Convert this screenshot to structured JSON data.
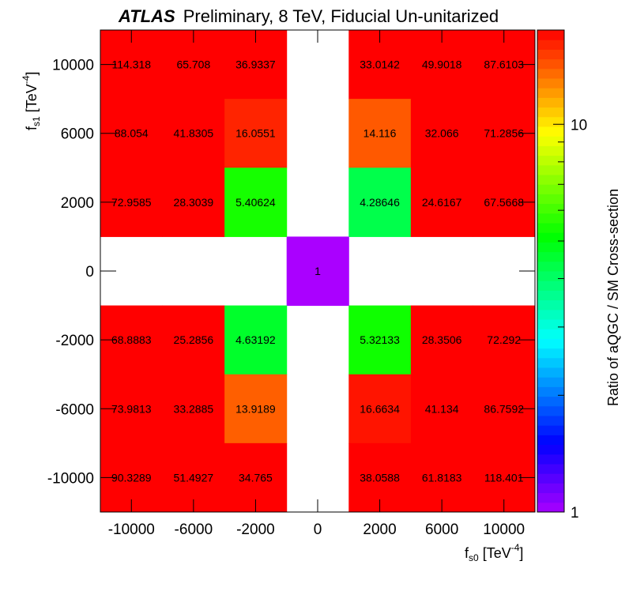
{
  "header": {
    "experiment": "ATLAS",
    "subtitle": "Preliminary, 8 TeV, Fiducial Un-unitarized"
  },
  "axes": {
    "x_main": "f",
    "x_sub": "s0",
    "x_unit_pre": " [TeV",
    "x_unit_sup": "-4",
    "x_unit_post": "]",
    "y_main": "f",
    "y_sub": "s1",
    "y_unit_pre": " [TeV",
    "y_unit_sup": "-4",
    "y_unit_post": "]",
    "z_label": "Ratio of aQGC / SM Cross-section"
  },
  "chart_data": {
    "type": "heatmap",
    "title": "ATLAS Preliminary, 8 TeV, Fiducial Un-unitarized",
    "xlabel": "f_s0 [TeV^-4]",
    "ylabel": "f_s1 [TeV^-4]",
    "zlabel": "Ratio of aQGC / SM Cross-section",
    "x": [
      -12000,
      -8000,
      -4000,
      0,
      4000,
      8000,
      12000
    ],
    "y": [
      12000,
      8000,
      4000,
      0,
      -4000,
      -8000,
      -12000
    ],
    "x_ticks": [
      "-10000",
      "-6000",
      "-2000",
      "0",
      "2000",
      "6000",
      "10000"
    ],
    "y_ticks": [
      "10000",
      "6000",
      "2000",
      "0",
      "-2000",
      "-6000",
      "-10000"
    ],
    "z_scale": "log",
    "z_range": [
      1,
      17.5
    ],
    "z_ticks": [
      "10",
      "1"
    ],
    "values": [
      [
        114.318,
        65.708,
        36.9337,
        null,
        33.0142,
        49.9018,
        87.6103
      ],
      [
        88.054,
        41.8305,
        16.0551,
        null,
        14.116,
        32.066,
        71.2856
      ],
      [
        72.9585,
        28.3039,
        5.40624,
        null,
        4.28646,
        24.6167,
        67.5668
      ],
      [
        null,
        null,
        null,
        1,
        null,
        null,
        null
      ],
      [
        68.8883,
        25.2856,
        4.63192,
        null,
        5.32133,
        28.3506,
        72.292
      ],
      [
        73.9813,
        33.2885,
        13.9189,
        null,
        16.6634,
        41.134,
        86.7592
      ],
      [
        90.3289,
        51.4927,
        34.765,
        null,
        38.0588,
        61.8183,
        118.401
      ]
    ],
    "labels": [
      [
        "114.318",
        "65.708",
        "36.9337",
        "",
        "33.0142",
        "49.9018",
        "87.6103"
      ],
      [
        "88.054",
        "41.8305",
        "16.0551",
        "",
        "14.116",
        "32.066",
        "71.2856"
      ],
      [
        "72.9585",
        "28.3039",
        "5.40624",
        "",
        "4.28646",
        "24.6167",
        "67.5668"
      ],
      [
        "",
        "",
        "",
        "1",
        "",
        "",
        ""
      ],
      [
        "68.8883",
        "25.2856",
        "4.63192",
        "",
        "5.32133",
        "28.3506",
        "72.292"
      ],
      [
        "73.9813",
        "33.2885",
        "13.9189",
        "",
        "16.6634",
        "41.134",
        "86.7592"
      ],
      [
        "90.3289",
        "51.4927",
        "34.765",
        "",
        "38.0588",
        "61.8183",
        "118.401"
      ]
    ]
  }
}
